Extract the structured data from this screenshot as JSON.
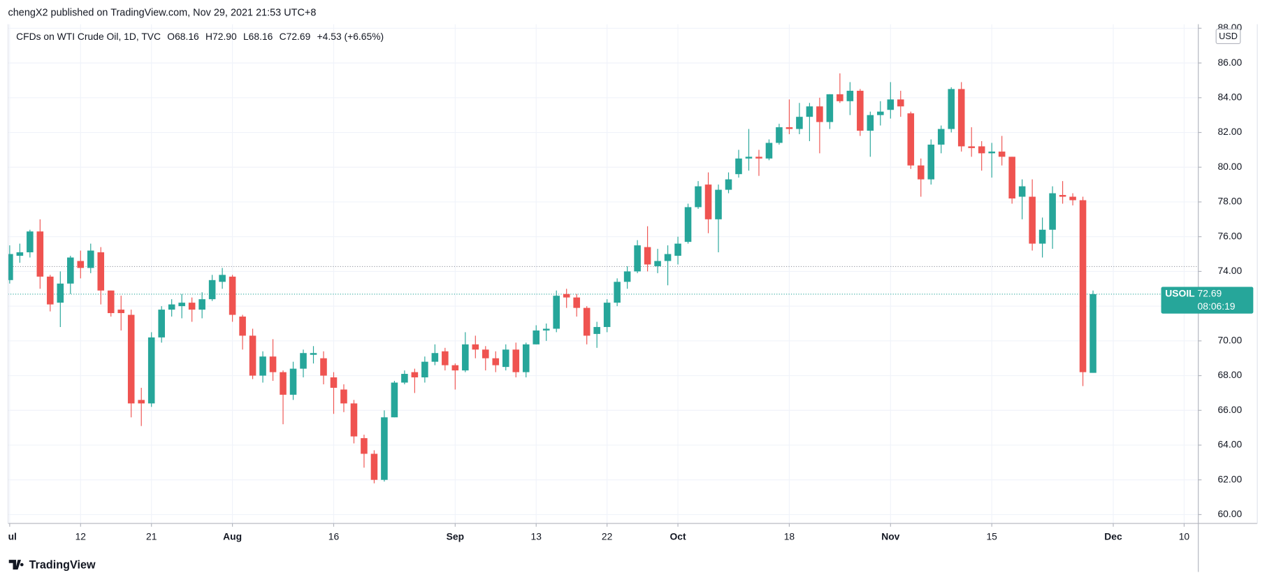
{
  "header": {
    "publisher": "chengX2 published on TradingView.com, Nov 29, 2021 21:53 UTC+8",
    "footer": "TradingView"
  },
  "chart_data": {
    "type": "candlestick",
    "title": "CFDs on WTI Crude Oil, 1D, TVC",
    "ohlc_legend": [
      "O68.16",
      "H72.90",
      "L68.16",
      "C72.69",
      "+4.53 (+6.65%)"
    ],
    "currency": "USD",
    "symbol": "USOIL",
    "last_price": {
      "value": 72.69,
      "label": "72.69"
    },
    "countdown": "08:06:19",
    "horizontal_line": 74.28,
    "up_color": "#26a69a",
    "down_color": "#ef5350",
    "open": [
      73.5,
      74.9,
      75.1,
      76.3,
      73.7,
      72.2,
      73.3,
      74.6,
      74.2,
      75.1,
      72.9,
      71.8,
      71.5,
      66.6,
      66.4,
      70.2,
      71.8,
      72.0,
      72.2,
      71.8,
      72.4,
      73.4,
      73.7,
      71.4,
      70.3,
      68.0,
      69.1,
      68.2,
      66.9,
      68.4,
      69.2,
      69.0,
      67.9,
      67.2,
      66.4,
      64.4,
      63.5,
      62.0,
      65.6,
      67.6,
      68.2,
      67.9,
      68.8,
      69.4,
      68.6,
      68.3,
      69.8,
      69.5,
      69.0,
      68.5,
      69.5,
      68.2,
      69.8,
      70.6,
      70.7,
      72.7,
      72.5,
      71.9,
      70.4,
      70.8,
      72.2,
      73.4,
      74.0,
      75.4,
      74.3,
      74.6,
      74.9,
      75.7,
      77.7,
      79.0,
      77.0,
      78.7,
      79.6,
      80.5,
      80.6,
      80.5,
      81.4,
      82.3,
      82.2,
      82.9,
      83.5,
      82.6,
      84.2,
      83.8,
      84.4,
      82.1,
      83.0,
      83.3,
      83.9,
      83.1,
      80.1,
      79.3,
      81.3,
      82.2,
      84.5,
      81.2,
      81.2,
      80.8,
      80.9,
      80.6,
      78.3,
      78.3,
      75.6,
      76.4,
      78.4,
      78.3,
      78.1,
      68.16
    ],
    "high": [
      75.5,
      75.6,
      76.4,
      77.0,
      73.8,
      74.0,
      74.9,
      75.2,
      75.6,
      75.4,
      72.9,
      72.6,
      71.8,
      67.3,
      70.5,
      72.0,
      72.4,
      72.7,
      72.5,
      72.8,
      73.8,
      74.2,
      73.8,
      71.5,
      70.7,
      69.4,
      70.1,
      68.3,
      68.8,
      69.5,
      69.7,
      69.4,
      68.2,
      67.5,
      66.6,
      64.6,
      63.7,
      66.0,
      67.7,
      68.3,
      68.4,
      69.1,
      69.8,
      69.6,
      68.7,
      70.5,
      70.3,
      69.7,
      69.4,
      69.8,
      69.9,
      69.9,
      70.9,
      71.0,
      72.9,
      73.0,
      72.7,
      72.0,
      71.1,
      72.4,
      73.6,
      74.3,
      75.8,
      76.6,
      75.3,
      75.5,
      76.0,
      77.9,
      79.2,
      79.7,
      79.0,
      79.7,
      81.0,
      82.2,
      81.0,
      81.6,
      82.5,
      83.9,
      83.7,
      83.7,
      84.0,
      84.2,
      85.4,
      84.9,
      84.5,
      83.2,
      83.8,
      84.9,
      84.4,
      83.2,
      80.5,
      81.6,
      82.4,
      84.6,
      84.9,
      82.3,
      81.5,
      81.4,
      81.8,
      80.6,
      79.3,
      79.3,
      77.1,
      78.9,
      79.2,
      78.5,
      78.3,
      72.9
    ],
    "low": [
      73.3,
      74.5,
      74.8,
      73.0,
      71.7,
      70.8,
      72.7,
      73.6,
      73.9,
      72.1,
      71.4,
      70.6,
      65.6,
      65.1,
      66.2,
      69.9,
      71.4,
      71.3,
      71.1,
      71.3,
      72.3,
      73.0,
      71.1,
      69.5,
      67.8,
      67.6,
      67.7,
      65.2,
      66.6,
      67.9,
      68.7,
      67.5,
      65.8,
      65.9,
      64.1,
      62.7,
      61.8,
      61.9,
      65.6,
      67.5,
      67.0,
      67.6,
      68.6,
      68.3,
      67.2,
      68.2,
      69.0,
      68.3,
      68.2,
      68.3,
      67.9,
      67.9,
      69.8,
      70.0,
      70.5,
      71.9,
      71.4,
      69.8,
      69.6,
      70.5,
      72.0,
      73.0,
      73.9,
      74.0,
      73.9,
      73.2,
      74.4,
      75.6,
      77.6,
      76.2,
      75.1,
      78.5,
      79.4,
      79.8,
      79.5,
      80.4,
      81.3,
      81.9,
      81.9,
      81.5,
      80.8,
      82.2,
      83.7,
      83.0,
      81.8,
      80.6,
      82.4,
      82.8,
      82.9,
      79.9,
      78.3,
      79.0,
      80.8,
      82.0,
      80.9,
      80.6,
      79.8,
      79.4,
      80.1,
      77.9,
      77.0,
      75.2,
      74.8,
      75.3,
      77.9,
      77.8,
      67.4,
      68.16
    ],
    "close": [
      75.0,
      75.1,
      76.3,
      73.7,
      72.1,
      73.3,
      74.8,
      74.2,
      75.2,
      72.9,
      71.6,
      71.6,
      66.4,
      66.4,
      70.2,
      71.8,
      72.1,
      72.2,
      71.8,
      72.4,
      73.5,
      73.8,
      71.5,
      70.3,
      68.0,
      69.1,
      68.2,
      66.9,
      68.4,
      69.3,
      69.3,
      68.0,
      67.3,
      66.4,
      64.5,
      63.5,
      62.0,
      65.6,
      67.6,
      68.1,
      67.9,
      68.8,
      69.3,
      68.6,
      68.3,
      69.8,
      69.5,
      69.0,
      68.6,
      69.5,
      68.2,
      69.8,
      70.6,
      70.7,
      72.6,
      72.5,
      71.9,
      70.3,
      70.8,
      72.2,
      73.4,
      74.0,
      75.5,
      74.4,
      74.6,
      75.0,
      75.6,
      77.7,
      78.9,
      77.0,
      78.7,
      79.3,
      80.5,
      80.6,
      80.5,
      81.4,
      82.3,
      82.2,
      82.9,
      83.5,
      82.6,
      84.2,
      83.8,
      84.4,
      82.1,
      83.0,
      83.2,
      83.9,
      83.5,
      80.1,
      79.3,
      81.3,
      82.2,
      84.5,
      81.2,
      81.1,
      80.8,
      80.9,
      80.6,
      78.2,
      78.9,
      75.6,
      76.4,
      78.5,
      78.3,
      78.1,
      68.2,
      72.69
    ],
    "xlim": [
      -0.16,
      117.4
    ],
    "xticks": [
      {
        "value": 0,
        "label": "Jul"
      },
      {
        "value": 7,
        "label": "12"
      },
      {
        "value": 14,
        "label": "21"
      },
      {
        "value": 22,
        "label": "Aug"
      },
      {
        "value": 32,
        "label": "16"
      },
      {
        "value": 44,
        "label": "Sep"
      },
      {
        "value": 52,
        "label": "13"
      },
      {
        "value": 59,
        "label": "22"
      },
      {
        "value": 66,
        "label": "Oct"
      },
      {
        "value": 77,
        "label": "18"
      },
      {
        "value": 87,
        "label": "Nov"
      },
      {
        "value": 97,
        "label": "15"
      },
      {
        "value": 109,
        "label": "Dec"
      },
      {
        "value": 116,
        "label": "10"
      }
    ],
    "ylim": [
      59.49,
      88.23
    ],
    "yticks": [
      {
        "value": 60,
        "label": "60.00"
      },
      {
        "value": 62,
        "label": "62.00"
      },
      {
        "value": 64,
        "label": "64.00"
      },
      {
        "value": 66,
        "label": "66.00"
      },
      {
        "value": 68,
        "label": "68.00"
      },
      {
        "value": 70,
        "label": "70.00"
      },
      {
        "value": 72,
        "label": "72.00"
      },
      {
        "value": 74,
        "label": "74.00"
      },
      {
        "value": 76,
        "label": "76.00"
      },
      {
        "value": 78,
        "label": "78.00"
      },
      {
        "value": 80,
        "label": "80.00"
      },
      {
        "value": 82,
        "label": "82.00"
      },
      {
        "value": 84,
        "label": "84.00"
      },
      {
        "value": 86,
        "label": "86.00"
      },
      {
        "value": 88,
        "label": "88.00"
      }
    ],
    "grid": true
  }
}
